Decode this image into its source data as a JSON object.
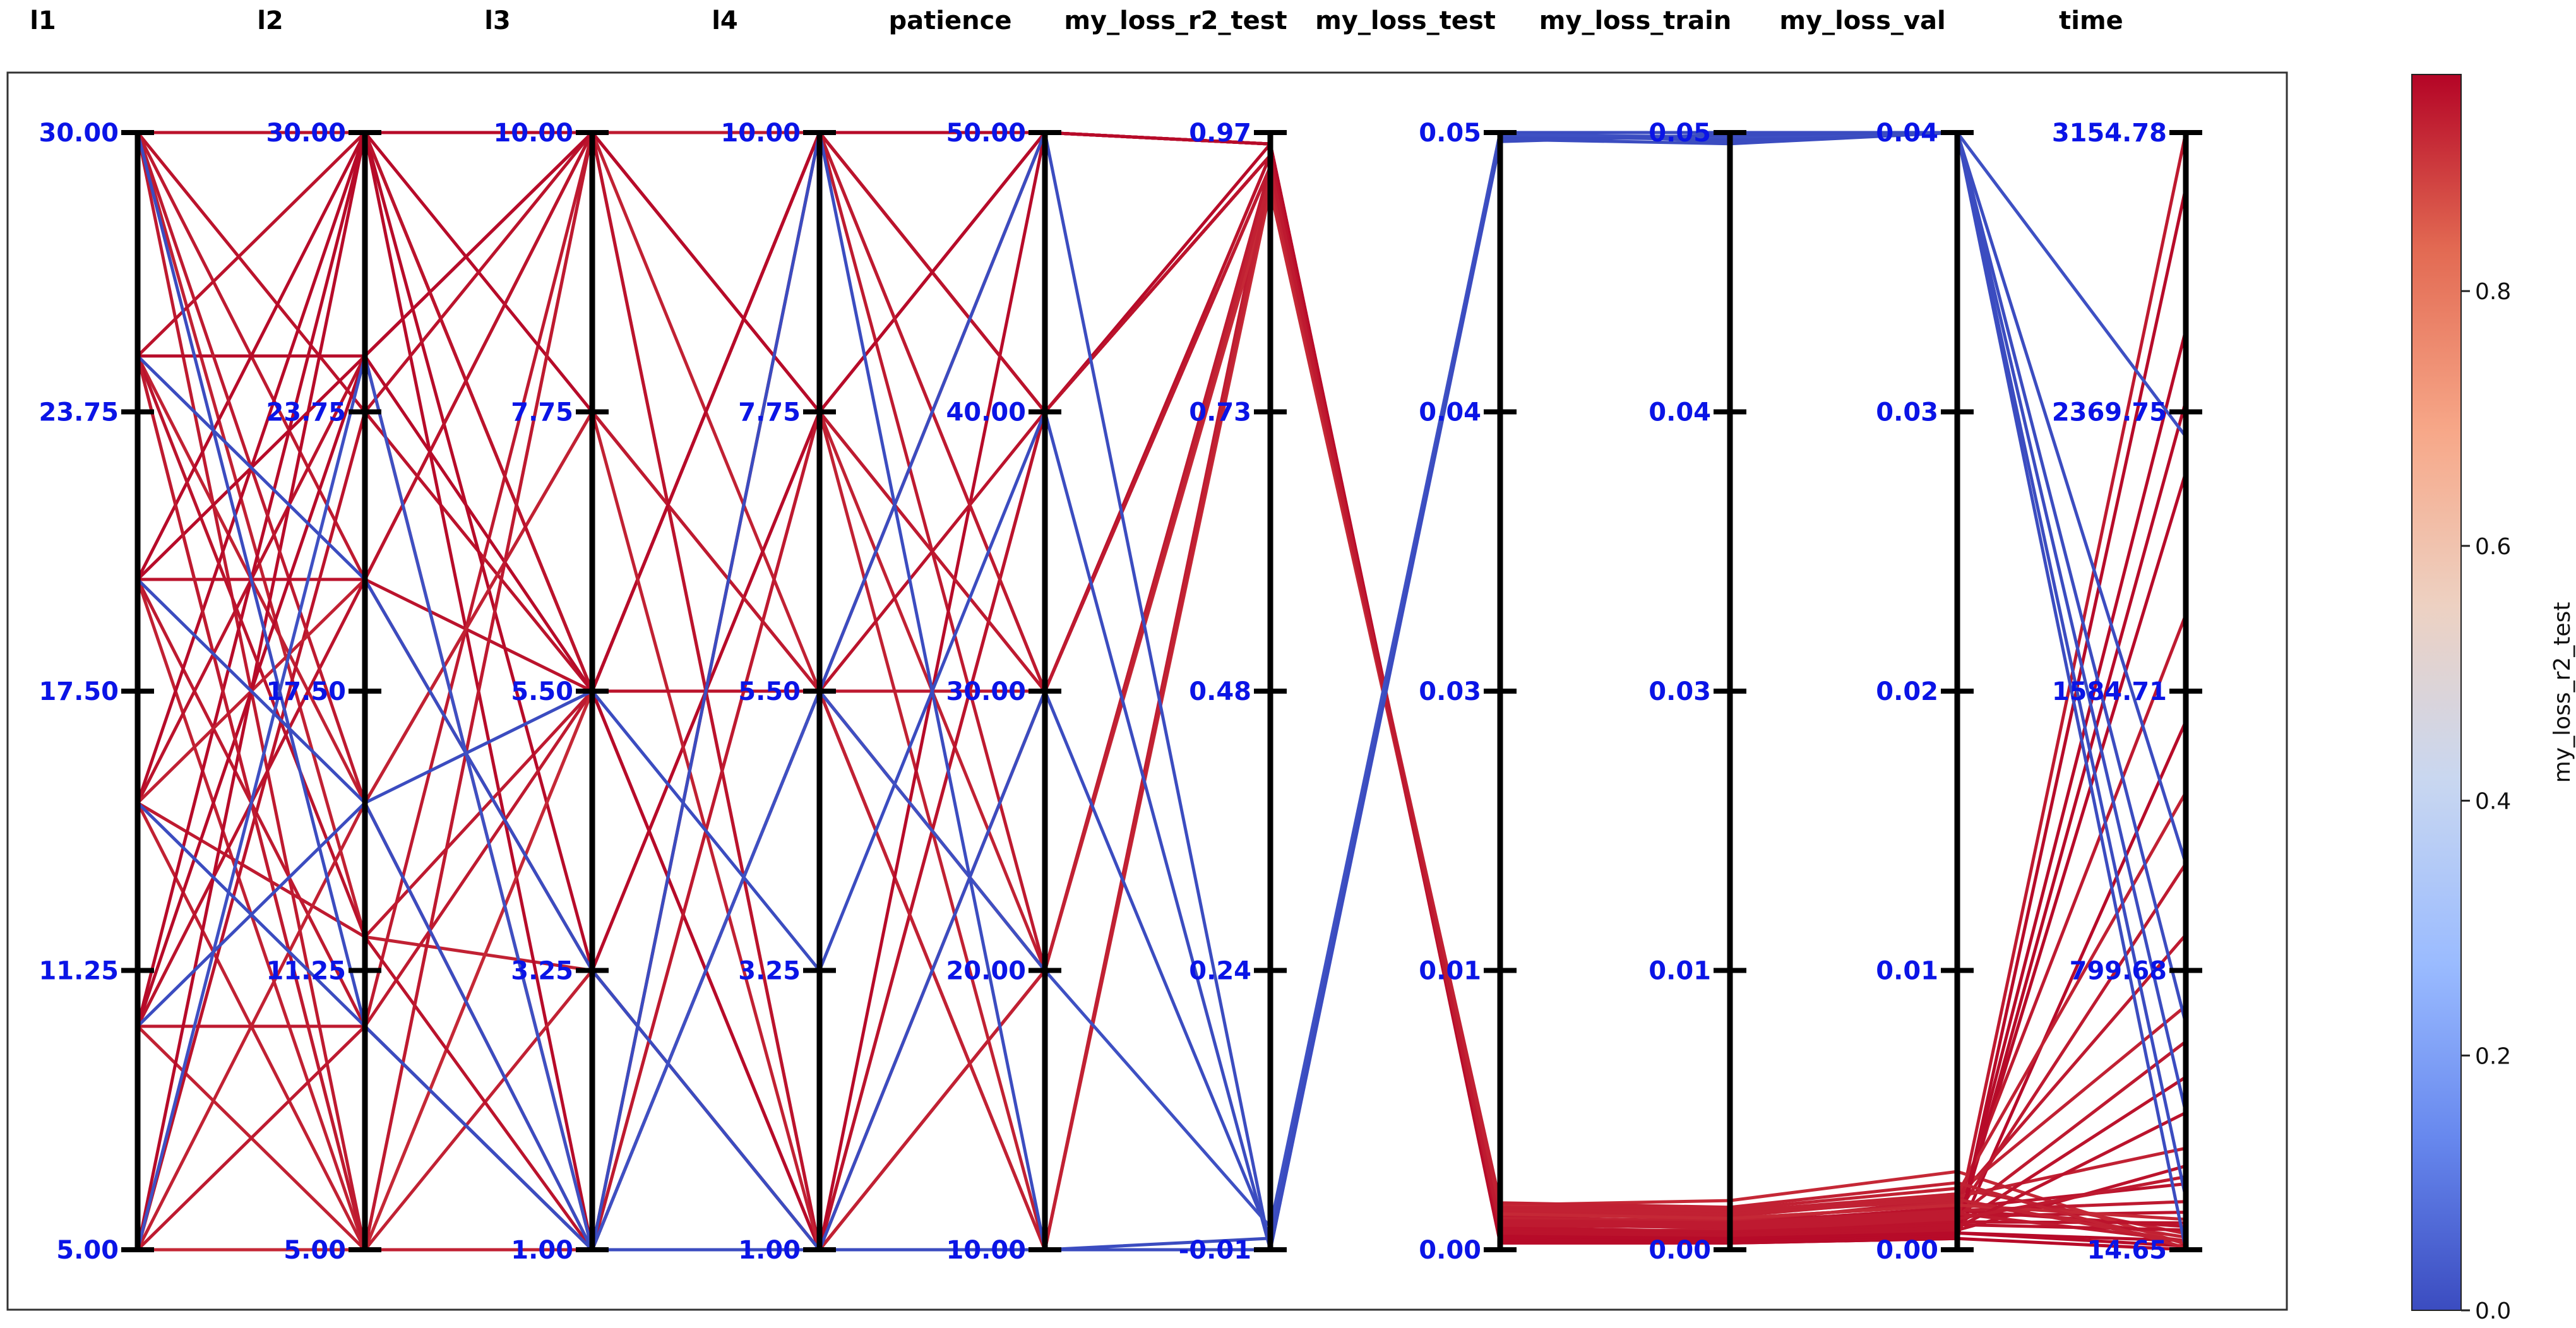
{
  "chart_data": {
    "type": "parallel_coordinates",
    "colormap": "coolwarm",
    "color_by": "my_loss_r2_test",
    "colorbar": {
      "label": "my_loss_r2_test",
      "range": [
        0.0,
        0.97
      ],
      "ticks": [
        "0.0",
        "0.2",
        "0.4",
        "0.6",
        "0.8"
      ],
      "tick_values": [
        0.0,
        0.2,
        0.4,
        0.6,
        0.8
      ],
      "colors": [
        "#3b4cc0",
        "#6788ee",
        "#9abbff",
        "#c9d7f0",
        "#edd1c2",
        "#f7a889",
        "#e26952",
        "#b40426"
      ]
    },
    "axes": [
      {
        "name": "l1",
        "range": [
          5.0,
          30.0
        ],
        "ticks": [
          "5.00",
          "11.25",
          "17.50",
          "23.75",
          "30.00"
        ]
      },
      {
        "name": "l2",
        "range": [
          5.0,
          30.0
        ],
        "ticks": [
          "5.00",
          "11.25",
          "17.50",
          "23.75",
          "30.00"
        ]
      },
      {
        "name": "l3",
        "range": [
          1.0,
          10.0
        ],
        "ticks": [
          "1.00",
          "3.25",
          "5.50",
          "7.75",
          "10.00"
        ]
      },
      {
        "name": "l4",
        "range": [
          1.0,
          10.0
        ],
        "ticks": [
          "1.00",
          "3.25",
          "5.50",
          "7.75",
          "10.00"
        ]
      },
      {
        "name": "patience",
        "range": [
          10.0,
          50.0
        ],
        "ticks": [
          "10.00",
          "20.00",
          "30.00",
          "40.00",
          "50.00"
        ]
      },
      {
        "name": "my_loss_r2_test",
        "range": [
          -0.01,
          0.97
        ],
        "ticks": [
          "-0.01",
          "0.24",
          "0.48",
          "0.73",
          "0.97"
        ]
      },
      {
        "name": "my_loss_test",
        "range": [
          0.0,
          0.05
        ],
        "ticks": [
          "0.00",
          "0.01",
          "0.03",
          "0.04",
          "0.05"
        ]
      },
      {
        "name": "my_loss_train",
        "range": [
          0.0,
          0.05
        ],
        "ticks": [
          "0.00",
          "0.01",
          "0.03",
          "0.04",
          "0.05"
        ]
      },
      {
        "name": "my_loss_val",
        "range": [
          0.0,
          0.04
        ],
        "ticks": [
          "0.00",
          "0.01",
          "0.02",
          "0.03",
          "0.04"
        ]
      },
      {
        "name": "time",
        "range": [
          14.65,
          3154.78
        ],
        "ticks": [
          "14.65",
          "799.68",
          "1584.71",
          "2369.75",
          "3154.78"
        ]
      }
    ],
    "series": [
      {
        "values": [
          30,
          30,
          10,
          10,
          50,
          0.96,
          0.0005,
          0.0004,
          0.0006,
          40
        ]
      },
      {
        "values": [
          30,
          23.75,
          5.5,
          10,
          40,
          0.95,
          0.001,
          0.0008,
          0.0012,
          120
        ]
      },
      {
        "values": [
          30,
          20,
          10,
          7.75,
          30,
          0.94,
          0.0015,
          0.0012,
          0.0018,
          900
        ]
      },
      {
        "values": [
          30,
          12,
          3.25,
          1,
          20,
          0.93,
          0.002,
          0.0018,
          0.0022,
          60
        ]
      },
      {
        "values": [
          30,
          5,
          1,
          5.5,
          10,
          0.94,
          0.0008,
          0.0009,
          0.001,
          3154.78
        ]
      },
      {
        "values": [
          25,
          30,
          5.5,
          1,
          30,
          0.95,
          0.0012,
          0.001,
          0.0014,
          80
        ]
      },
      {
        "values": [
          25,
          25,
          10,
          10,
          50,
          0.96,
          0.0006,
          0.0005,
          0.0007,
          2600
        ]
      },
      {
        "values": [
          25,
          15,
          1,
          7.75,
          20,
          0.93,
          0.0018,
          0.0016,
          0.002,
          700
        ]
      },
      {
        "values": [
          25,
          5,
          5.5,
          5.5,
          10,
          0.92,
          0.002,
          0.0022,
          0.0028,
          30
        ]
      },
      {
        "values": [
          20,
          30,
          1,
          10,
          40,
          0.96,
          0.0007,
          0.0006,
          0.0008,
          2200
        ]
      },
      {
        "values": [
          20,
          20,
          5.5,
          5.5,
          30,
          0.95,
          0.001,
          0.0012,
          0.0015,
          200
        ]
      },
      {
        "values": [
          20,
          10,
          10,
          1,
          20,
          0.94,
          0.0016,
          0.0014,
          0.0016,
          1800
        ]
      },
      {
        "values": [
          20,
          5,
          3.25,
          7.75,
          10,
          0.93,
          0.0014,
          0.0013,
          0.0017,
          50
        ]
      },
      {
        "values": [
          15,
          30,
          7.75,
          5.5,
          50,
          0.96,
          0.0005,
          0.0004,
          0.0005,
          1500
        ]
      },
      {
        "values": [
          15,
          25,
          1,
          1,
          40,
          0.95,
          0.0009,
          0.0007,
          0.001,
          90
        ]
      },
      {
        "values": [
          15,
          12,
          5.5,
          10,
          30,
          0.94,
          0.0012,
          0.0011,
          0.0013,
          1100
        ]
      },
      {
        "values": [
          15,
          5,
          10,
          5.5,
          20,
          0.93,
          0.0017,
          0.0015,
          0.0019,
          300
        ]
      },
      {
        "values": [
          10,
          30,
          3.25,
          7.75,
          50,
          0.96,
          0.0006,
          0.0005,
          0.0006,
          2400
        ]
      },
      {
        "values": [
          10,
          20,
          10,
          1,
          40,
          0.95,
          0.0008,
          0.0007,
          0.0009,
          500
        ]
      },
      {
        "values": [
          10,
          10,
          5.5,
          10,
          20,
          0.94,
          0.0013,
          0.0012,
          0.0014,
          150
        ]
      },
      {
        "values": [
          10,
          5,
          1,
          5.5,
          10,
          0.93,
          0.0019,
          0.0017,
          0.002,
          1300
        ]
      },
      {
        "values": [
          5,
          30,
          5.5,
          1,
          50,
          0.96,
          0.0004,
          0.0003,
          0.0004,
          3000
        ]
      },
      {
        "values": [
          5,
          23.75,
          10,
          10,
          40,
          0.95,
          0.0007,
          0.0006,
          0.0007,
          250
        ]
      },
      {
        "values": [
          5,
          10,
          1,
          7.75,
          30,
          0.94,
          0.0011,
          0.001,
          0.0012,
          600
        ]
      },
      {
        "values": [
          5,
          5,
          5.5,
          5.5,
          20,
          0.92,
          0.0016,
          0.0014,
          0.0016,
          100
        ]
      },
      {
        "values": [
          30,
          15,
          7.75,
          5.5,
          30,
          0.94,
          0.0012,
          0.0011,
          0.0013,
          40
        ]
      },
      {
        "values": [
          25,
          12,
          1,
          10,
          40,
          0.95,
          0.0009,
          0.0008,
          0.0009,
          70
        ]
      },
      {
        "values": [
          20,
          25,
          10,
          7.75,
          50,
          0.96,
          0.0006,
          0.0005,
          0.0006,
          25
        ]
      },
      {
        "values": [
          15,
          20,
          3.25,
          1,
          10,
          0.93,
          0.0021,
          0.0019,
          0.0024,
          20
        ]
      },
      {
        "values": [
          10,
          25,
          5.5,
          10,
          50,
          0.96,
          0.0003,
          0.0003,
          0.0004,
          15
        ]
      },
      {
        "values": [
          5,
          15,
          7.75,
          1,
          20,
          0.93,
          0.0018,
          0.0016,
          0.0018,
          35
        ]
      },
      {
        "values": [
          30,
          30,
          5.5,
          5.5,
          40,
          0.95,
          0.0008,
          0.0007,
          0.0008,
          400
        ]
      },
      {
        "values": [
          25,
          5,
          10,
          10,
          30,
          0.94,
          0.0011,
          0.001,
          0.0011,
          220
        ]
      },
      {
        "values": [
          10,
          15,
          1,
          1,
          10,
          0.0,
          0.05,
          0.05,
          0.04,
          14.65
        ]
      },
      {
        "values": [
          15,
          10,
          1,
          5.5,
          50,
          -0.01,
          0.05,
          0.0496,
          0.04,
          650
        ]
      },
      {
        "values": [
          20,
          15,
          5.5,
          3.25,
          40,
          -0.01,
          0.0498,
          0.0497,
          0.04,
          400
        ]
      },
      {
        "values": [
          25,
          20,
          3.25,
          1,
          30,
          0.0,
          0.0497,
          0.0495,
          0.04,
          160
        ]
      },
      {
        "values": [
          5,
          25,
          1,
          5.5,
          20,
          0.01,
          0.0499,
          0.0498,
          0.04,
          2300
        ]
      },
      {
        "values": [
          30,
          10,
          1,
          10,
          10,
          -0.01,
          0.0496,
          0.0499,
          0.04,
          1100
        ]
      }
    ]
  }
}
